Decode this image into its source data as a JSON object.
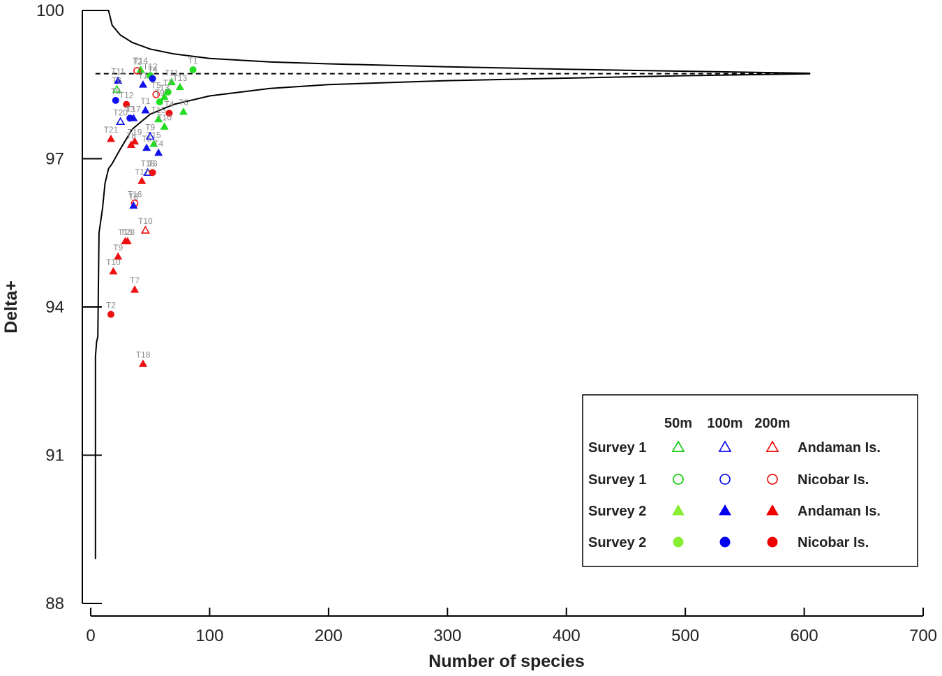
{
  "chart_data": {
    "type": "scatter",
    "title": "",
    "xlabel": "Number of species",
    "ylabel": "Delta+",
    "xlim": [
      0,
      700
    ],
    "ylim": [
      88,
      100
    ],
    "xticks": [
      0,
      100,
      200,
      300,
      400,
      500,
      600,
      700
    ],
    "yticks": [
      88,
      91,
      94,
      97,
      100
    ],
    "mean_line": 98.72,
    "funnel_upper": [
      [
        5,
        100
      ],
      [
        15,
        100
      ],
      [
        18,
        99.7
      ],
      [
        25,
        99.5
      ],
      [
        35,
        99.35
      ],
      [
        50,
        99.22
      ],
      [
        70,
        99.12
      ],
      [
        100,
        99.03
      ],
      [
        150,
        98.96
      ],
      [
        200,
        98.92
      ],
      [
        300,
        98.86
      ],
      [
        400,
        98.81
      ],
      [
        500,
        98.77
      ],
      [
        605,
        98.73
      ]
    ],
    "funnel_lower": [
      [
        4,
        88.9
      ],
      [
        4,
        93.0
      ],
      [
        5,
        93.3
      ],
      [
        6,
        93.4
      ],
      [
        7,
        95.5
      ],
      [
        10,
        96.0
      ],
      [
        12,
        96.5
      ],
      [
        15,
        96.8
      ],
      [
        18,
        96.9
      ],
      [
        25,
        97.2
      ],
      [
        35,
        97.6
      ],
      [
        50,
        97.9
      ],
      [
        70,
        98.1
      ],
      [
        100,
        98.27
      ],
      [
        150,
        98.42
      ],
      [
        200,
        98.5
      ],
      [
        300,
        98.58
      ],
      [
        400,
        98.63
      ],
      [
        500,
        98.68
      ],
      [
        605,
        98.72
      ]
    ],
    "points": [
      {
        "label": "T1",
        "x": 86,
        "y": 98.8,
        "color": "green",
        "shape": "circle",
        "filled": true
      },
      {
        "label": "T14",
        "x": 42,
        "y": 98.8,
        "color": "green",
        "shape": "triangle",
        "filled": true
      },
      {
        "label": "T2",
        "x": 39,
        "y": 98.78,
        "color": "red",
        "shape": "circle",
        "filled": false
      },
      {
        "label": "T12",
        "x": 50,
        "y": 98.68,
        "color": "green",
        "shape": "circle",
        "filled": true
      },
      {
        "label": "T11",
        "x": 23,
        "y": 98.58,
        "color": "blue",
        "shape": "triangle",
        "filled": true
      },
      {
        "label": "T11",
        "x": 68,
        "y": 98.55,
        "color": "green",
        "shape": "triangle",
        "filled": true
      },
      {
        "label": "T4",
        "x": 52,
        "y": 98.62,
        "color": "blue",
        "shape": "circle",
        "filled": true
      },
      {
        "label": "T13",
        "x": 75,
        "y": 98.45,
        "color": "green",
        "shape": "triangle",
        "filled": true
      },
      {
        "label": "T1",
        "x": 44,
        "y": 98.5,
        "color": "blue",
        "shape": "triangle",
        "filled": true
      },
      {
        "label": "T6",
        "x": 22,
        "y": 98.4,
        "color": "green",
        "shape": "triangle",
        "filled": false
      },
      {
        "label": "T7",
        "x": 65,
        "y": 98.35,
        "color": "green",
        "shape": "circle",
        "filled": true
      },
      {
        "label": "T5",
        "x": 55,
        "y": 98.3,
        "color": "red",
        "shape": "circle",
        "filled": false
      },
      {
        "label": "T3",
        "x": 62,
        "y": 98.25,
        "color": "green",
        "shape": "triangle",
        "filled": true
      },
      {
        "label": "T8",
        "x": 21,
        "y": 98.18,
        "color": "blue",
        "shape": "circle",
        "filled": true
      },
      {
        "label": "T12",
        "x": 30,
        "y": 98.1,
        "color": "red",
        "shape": "circle",
        "filled": true
      },
      {
        "label": "T9",
        "x": 58,
        "y": 98.15,
        "color": "green",
        "shape": "circle",
        "filled": true
      },
      {
        "label": "T6",
        "x": 78,
        "y": 97.95,
        "color": "green",
        "shape": "triangle",
        "filled": true
      },
      {
        "label": "T1",
        "x": 46,
        "y": 97.98,
        "color": "blue",
        "shape": "triangle",
        "filled": true
      },
      {
        "label": "T20",
        "x": 25,
        "y": 97.75,
        "color": "blue",
        "shape": "triangle",
        "filled": false
      },
      {
        "label": "T3",
        "x": 33,
        "y": 97.82,
        "color": "blue",
        "shape": "circle",
        "filled": true
      },
      {
        "label": "T17",
        "x": 36,
        "y": 97.82,
        "color": "blue",
        "shape": "triangle",
        "filled": true
      },
      {
        "label": "T4",
        "x": 66,
        "y": 97.92,
        "color": "red",
        "shape": "circle",
        "filled": true
      },
      {
        "label": "T15",
        "x": 57,
        "y": 97.8,
        "color": "green",
        "shape": "triangle",
        "filled": true
      },
      {
        "label": "T10",
        "x": 62,
        "y": 97.65,
        "color": "green",
        "shape": "triangle",
        "filled": true
      },
      {
        "label": "T21",
        "x": 17,
        "y": 97.4,
        "color": "red",
        "shape": "triangle",
        "filled": true
      },
      {
        "label": "T19",
        "x": 37,
        "y": 97.35,
        "color": "red",
        "shape": "triangle",
        "filled": true
      },
      {
        "label": "T8",
        "x": 34,
        "y": 97.28,
        "color": "red",
        "shape": "triangle",
        "filled": true
      },
      {
        "label": "T15",
        "x": 53,
        "y": 97.3,
        "color": "green",
        "shape": "triangle",
        "filled": true
      },
      {
        "label": "T5",
        "x": 47,
        "y": 97.22,
        "color": "blue",
        "shape": "triangle",
        "filled": true
      },
      {
        "label": "T9",
        "x": 50,
        "y": 97.45,
        "color": "blue",
        "shape": "triangle",
        "filled": false
      },
      {
        "label": "T4",
        "x": 57,
        "y": 97.12,
        "color": "blue",
        "shape": "triangle",
        "filled": true
      },
      {
        "label": "T18",
        "x": 48,
        "y": 96.72,
        "color": "blue",
        "shape": "triangle",
        "filled": false
      },
      {
        "label": "T3",
        "x": 52,
        "y": 96.72,
        "color": "red",
        "shape": "circle",
        "filled": true
      },
      {
        "label": "T17",
        "x": 43,
        "y": 96.55,
        "color": "red",
        "shape": "triangle",
        "filled": true
      },
      {
        "label": "T16",
        "x": 37,
        "y": 96.1,
        "color": "red",
        "shape": "circle",
        "filled": false
      },
      {
        "label": "T6",
        "x": 36,
        "y": 96.05,
        "color": "blue",
        "shape": "triangle",
        "filled": true
      },
      {
        "label": "T10",
        "x": 46,
        "y": 95.55,
        "color": "red",
        "shape": "triangle",
        "filled": false
      },
      {
        "label": "T13",
        "x": 29,
        "y": 95.33,
        "color": "red",
        "shape": "triangle",
        "filled": true
      },
      {
        "label": "T23",
        "x": 31,
        "y": 95.33,
        "color": "red",
        "shape": "triangle",
        "filled": true
      },
      {
        "label": "T9",
        "x": 23,
        "y": 95.02,
        "color": "red",
        "shape": "triangle",
        "filled": true
      },
      {
        "label": "T10",
        "x": 19,
        "y": 94.72,
        "color": "red",
        "shape": "triangle",
        "filled": true
      },
      {
        "label": "T7",
        "x": 37,
        "y": 94.35,
        "color": "red",
        "shape": "triangle",
        "filled": true
      },
      {
        "label": "T2",
        "x": 17,
        "y": 93.85,
        "color": "red",
        "shape": "circle",
        "filled": true
      },
      {
        "label": "T18",
        "x": 44,
        "y": 92.85,
        "color": "red",
        "shape": "triangle",
        "filled": true
      }
    ],
    "legend": {
      "position": "bottom-right",
      "columns": [
        "50m",
        "100m",
        "200m"
      ],
      "rows": [
        {
          "survey": "Survey 1",
          "region": "Andaman Is.",
          "shape": "triangle",
          "filled": false
        },
        {
          "survey": "Survey 1",
          "region": "Nicobar Is.",
          "shape": "circle",
          "filled": false
        },
        {
          "survey": "Survey 2",
          "region": "Andaman Is.",
          "shape": "triangle",
          "filled": true
        },
        {
          "survey": "Survey 2",
          "region": "Nicobar Is.",
          "shape": "circle",
          "filled": true
        }
      ],
      "column_colors": [
        "#00cc00",
        "#0000ee",
        "#ee0000"
      ],
      "column_colors_filled": [
        "#88ee33",
        "#0000ee",
        "#ee0000"
      ]
    },
    "colors": {
      "green": "#22dd22",
      "blue": "#1111ee",
      "red": "#ee1111"
    }
  }
}
